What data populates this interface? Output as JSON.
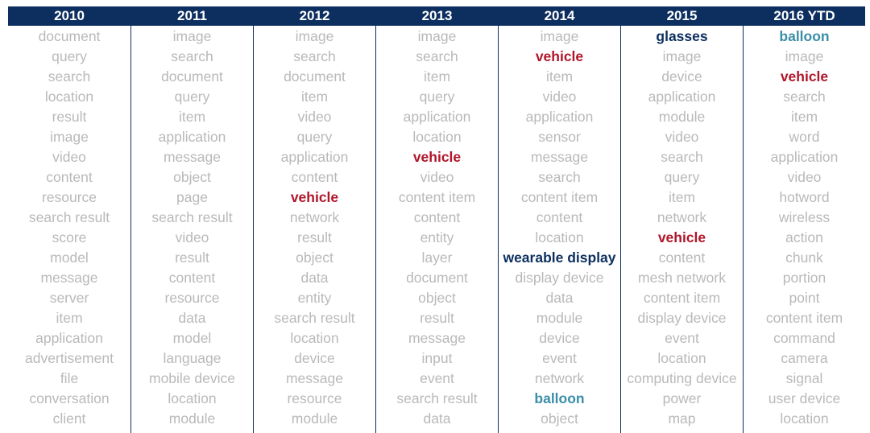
{
  "chart_data": {
    "type": "table",
    "colors": {
      "header_bg": "#0d2f5f",
      "header_text": "#ffffff",
      "default_text": "#b9b9b9",
      "vehicle": "#b0152a",
      "glasses": "#0d2f5f",
      "wearable display": "#0d2f5f",
      "balloon": "#3a8ea8"
    },
    "columns": [
      {
        "year": "2010",
        "terms": [
          "document",
          "query",
          "search",
          "location",
          "result",
          "image",
          "video",
          "content",
          "resource",
          "search result",
          "score",
          "model",
          "message",
          "server",
          "item",
          "application",
          "advertisement",
          "file",
          "conversation",
          "client"
        ]
      },
      {
        "year": "2011",
        "terms": [
          "image",
          "search",
          "document",
          "query",
          "item",
          "application",
          "message",
          "object",
          "page",
          "search result",
          "video",
          "result",
          "content",
          "resource",
          "data",
          "model",
          "language",
          "mobile device",
          "location",
          "module"
        ]
      },
      {
        "year": "2012",
        "terms": [
          "image",
          "search",
          "document",
          "item",
          "video",
          "query",
          "application",
          "content",
          "vehicle",
          "network",
          "result",
          "object",
          "data",
          "entity",
          "search result",
          "location",
          "device",
          "message",
          "resource",
          "module"
        ]
      },
      {
        "year": "2013",
        "terms": [
          "image",
          "search",
          "item",
          "query",
          "application",
          "location",
          "vehicle",
          "video",
          "content item",
          "content",
          "entity",
          "layer",
          "document",
          "object",
          "result",
          "message",
          "input",
          "event",
          "search result",
          "data"
        ]
      },
      {
        "year": "2014",
        "terms": [
          "image",
          "vehicle",
          "item",
          "video",
          "application",
          "sensor",
          "message",
          "search",
          "content item",
          "content",
          "location",
          "wearable display",
          "display device",
          "data",
          "module",
          "device",
          "event",
          "network",
          "balloon",
          "object"
        ]
      },
      {
        "year": "2015",
        "terms": [
          "glasses",
          "image",
          "device",
          "application",
          "module",
          "video",
          "search",
          "query",
          "item",
          "network",
          "vehicle",
          "content",
          "mesh network",
          "content item",
          "display device",
          "event",
          "location",
          "computing device",
          "power",
          "map"
        ]
      },
      {
        "year": "2016 YTD",
        "terms": [
          "balloon",
          "image",
          "vehicle",
          "search",
          "item",
          "word",
          "application",
          "video",
          "hotword",
          "wireless",
          "action",
          "chunk",
          "portion",
          "point",
          "content item",
          "command",
          "camera",
          "signal",
          "user device",
          "location"
        ]
      }
    ]
  }
}
